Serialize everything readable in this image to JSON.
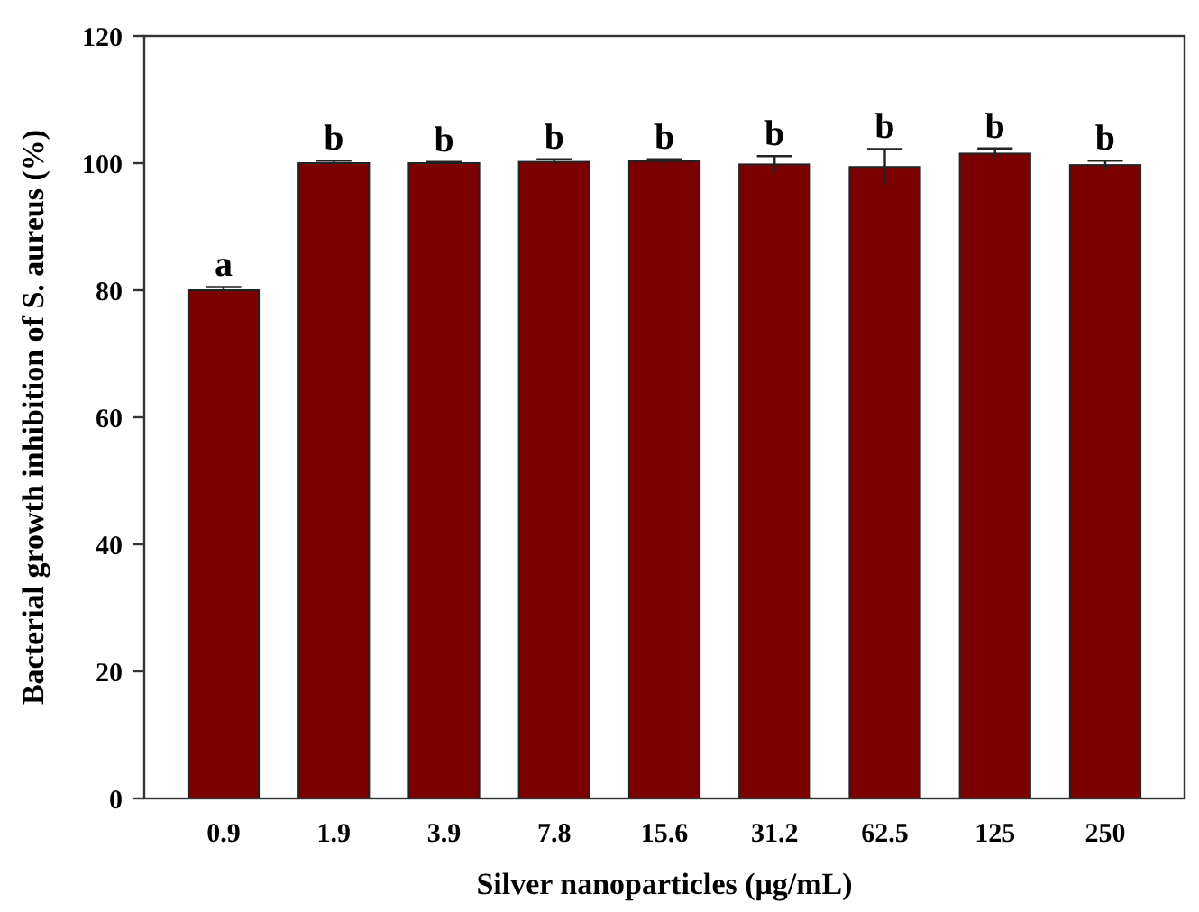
{
  "chart_data": {
    "type": "bar",
    "xlabel": "Silver nanoparticles (μg/mL)",
    "ylabel": "Bacterial growth inhibition of  S. aureus (%)",
    "categories": [
      "0.9",
      "1.9",
      "3.9",
      "7.8",
      "15.6",
      "31.2",
      "62.5",
      "125",
      "250"
    ],
    "values": [
      80,
      100,
      100,
      100.2,
      100.3,
      99.8,
      99.4,
      101.5,
      99.7
    ],
    "errors": [
      0.5,
      0.4,
      0.2,
      0.4,
      0.3,
      1.3,
      2.8,
      0.8,
      0.7
    ],
    "color": "#7b0000",
    "ylim": [
      0,
      120
    ],
    "yticks": [
      0,
      20,
      40,
      60,
      80,
      100,
      120
    ],
    "grid": false,
    "annotations": [
      {
        "text": "a",
        "x": "0.9",
        "y": 80.5
      },
      {
        "text": "b",
        "x": "1.9",
        "y": 100.4
      },
      {
        "text": "b",
        "x": "3.9",
        "y": 100.2
      },
      {
        "text": "b",
        "x": "7.8",
        "y": 100.6
      },
      {
        "text": "b",
        "x": "15.6",
        "y": 100.6
      },
      {
        "text": "b",
        "x": "31.2",
        "y": 101.1
      },
      {
        "text": "b",
        "x": "62.5",
        "y": 102.2
      },
      {
        "text": "b",
        "x": "125",
        "y": 102.3
      },
      {
        "text": "b",
        "x": "250",
        "y": 100.4
      }
    ]
  }
}
